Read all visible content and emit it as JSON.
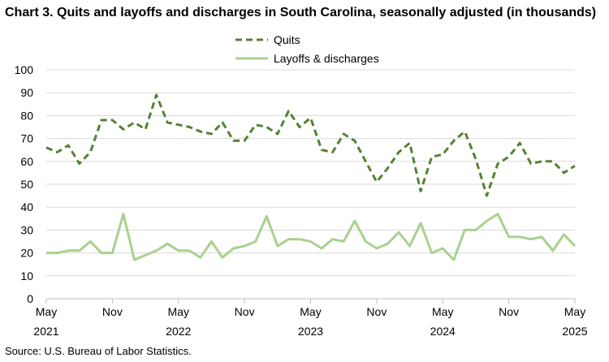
{
  "chart_data": {
    "type": "line",
    "title": "Chart 3. Quits and layoffs and discharges in South Carolina, seasonally adjusted (in thousands)",
    "source": "Source: U.S. Bureau of Labor Statistics.",
    "ylim": [
      0,
      100
    ],
    "yticks": [
      0,
      10,
      20,
      30,
      40,
      50,
      60,
      70,
      80,
      90,
      100
    ],
    "grid": true,
    "legend_position": "top",
    "x_start": "2021-05",
    "x_ticks": [
      {
        "index": 0,
        "month": "May",
        "year": "2021"
      },
      {
        "index": 6,
        "month": "Nov",
        "year": ""
      },
      {
        "index": 12,
        "month": "May",
        "year": "2022"
      },
      {
        "index": 18,
        "month": "Nov",
        "year": ""
      },
      {
        "index": 24,
        "month": "May",
        "year": "2023"
      },
      {
        "index": 30,
        "month": "Nov",
        "year": ""
      },
      {
        "index": 36,
        "month": "May",
        "year": "2024"
      },
      {
        "index": 42,
        "month": "Nov",
        "year": ""
      },
      {
        "index": 48,
        "month": "May",
        "year": "2025"
      }
    ],
    "series": [
      {
        "name": "Quits",
        "color": "#548235",
        "style": "dashed",
        "values": [
          66,
          64,
          67,
          59,
          64,
          78,
          78,
          74,
          77,
          74,
          89,
          77,
          76,
          75,
          73,
          72,
          77,
          69,
          69,
          76,
          75,
          72,
          82,
          75,
          79,
          65,
          64,
          72,
          69,
          60,
          51,
          57,
          64,
          68,
          47,
          62,
          63,
          69,
          73,
          61,
          45,
          59,
          62,
          68,
          59,
          60,
          60,
          55,
          58
        ]
      },
      {
        "name": "Layoffs & discharges",
        "color": "#a9d18e",
        "style": "solid",
        "values": [
          20,
          20,
          21,
          21,
          25,
          20,
          20,
          37,
          17,
          19,
          21,
          24,
          21,
          21,
          18,
          25,
          18,
          22,
          23,
          25,
          36,
          23,
          26,
          26,
          25,
          22,
          26,
          25,
          34,
          25,
          22,
          24,
          29,
          23,
          33,
          20,
          22,
          17,
          30,
          30,
          34,
          37,
          27,
          27,
          26,
          27,
          21,
          28,
          23
        ]
      }
    ]
  }
}
